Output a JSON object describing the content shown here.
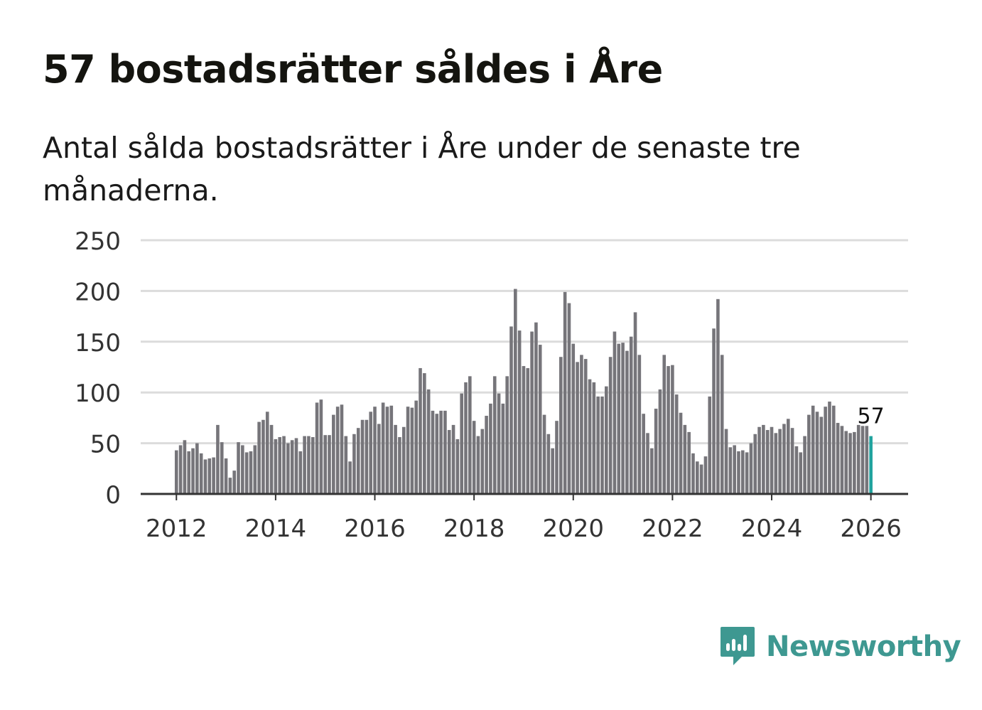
{
  "title": "57 bostadsrätter såldes i Åre",
  "subtitle": "Antal sålda bostadsrätter i Åre under de senaste tre månaderna.",
  "brand": {
    "name": "Newsworthy",
    "icon": "newsworthy-logo-icon",
    "color": "#3e9891"
  },
  "colors": {
    "bar": "#76757a",
    "highlight": "#20a39e",
    "grid": "#dcdcdc",
    "axis": "#333333",
    "label": "#333333"
  },
  "chart_data": {
    "type": "bar",
    "title": "57 bostadsrätter såldes i Åre",
    "subtitle": "Antal sålda bostadsrätter i Åre under de senaste tre månaderna.",
    "xlabel": "",
    "ylabel": "",
    "ylim": [
      0,
      250
    ],
    "yticks": [
      0,
      50,
      100,
      150,
      200,
      250
    ],
    "xticks": [
      {
        "year": 2012,
        "label": "2012"
      },
      {
        "year": 2014,
        "label": "2014"
      },
      {
        "year": 2016,
        "label": "2016"
      },
      {
        "year": 2018,
        "label": "2018"
      },
      {
        "year": 2020,
        "label": "2020"
      },
      {
        "year": 2022,
        "label": "2022"
      },
      {
        "year": 2024,
        "label": "2024"
      },
      {
        "year": 2026,
        "label": "2026"
      }
    ],
    "x_range": [
      2011.28,
      2026.75
    ],
    "start": {
      "year": 2012,
      "month": 1
    },
    "grid": true,
    "legend": "none",
    "values": [
      43,
      48,
      53,
      42,
      45,
      50,
      40,
      34,
      35,
      36,
      68,
      51,
      35,
      16,
      23,
      51,
      48,
      41,
      42,
      48,
      71,
      73,
      81,
      68,
      54,
      56,
      57,
      50,
      53,
      55,
      42,
      57,
      57,
      56,
      90,
      93,
      58,
      58,
      78,
      86,
      88,
      57,
      32,
      59,
      65,
      73,
      73,
      81,
      86,
      69,
      90,
      86,
      87,
      68,
      56,
      66,
      86,
      85,
      92,
      124,
      119,
      103,
      82,
      79,
      82,
      82,
      63,
      68,
      54,
      99,
      110,
      116,
      72,
      57,
      64,
      77,
      89,
      116,
      99,
      89,
      116,
      165,
      202,
      161,
      126,
      124,
      160,
      169,
      147,
      78,
      59,
      45,
      72,
      135,
      199,
      188,
      148,
      130,
      137,
      133,
      113,
      110,
      96,
      96,
      106,
      135,
      160,
      148,
      149,
      141,
      155,
      179,
      137,
      79,
      60,
      45,
      84,
      103,
      137,
      126,
      127,
      98,
      80,
      68,
      61,
      40,
      32,
      29,
      37,
      96,
      163,
      192,
      137,
      64,
      46,
      48,
      42,
      43,
      41,
      50,
      59,
      66,
      68,
      63,
      66,
      60,
      64,
      69,
      74,
      65,
      47,
      41,
      57,
      78,
      87,
      81,
      76,
      86,
      91,
      87,
      70,
      67,
      62,
      60,
      61,
      68,
      67,
      67,
      57
    ],
    "highlight_last": true,
    "annotation": {
      "label": "57",
      "target": "last"
    }
  }
}
